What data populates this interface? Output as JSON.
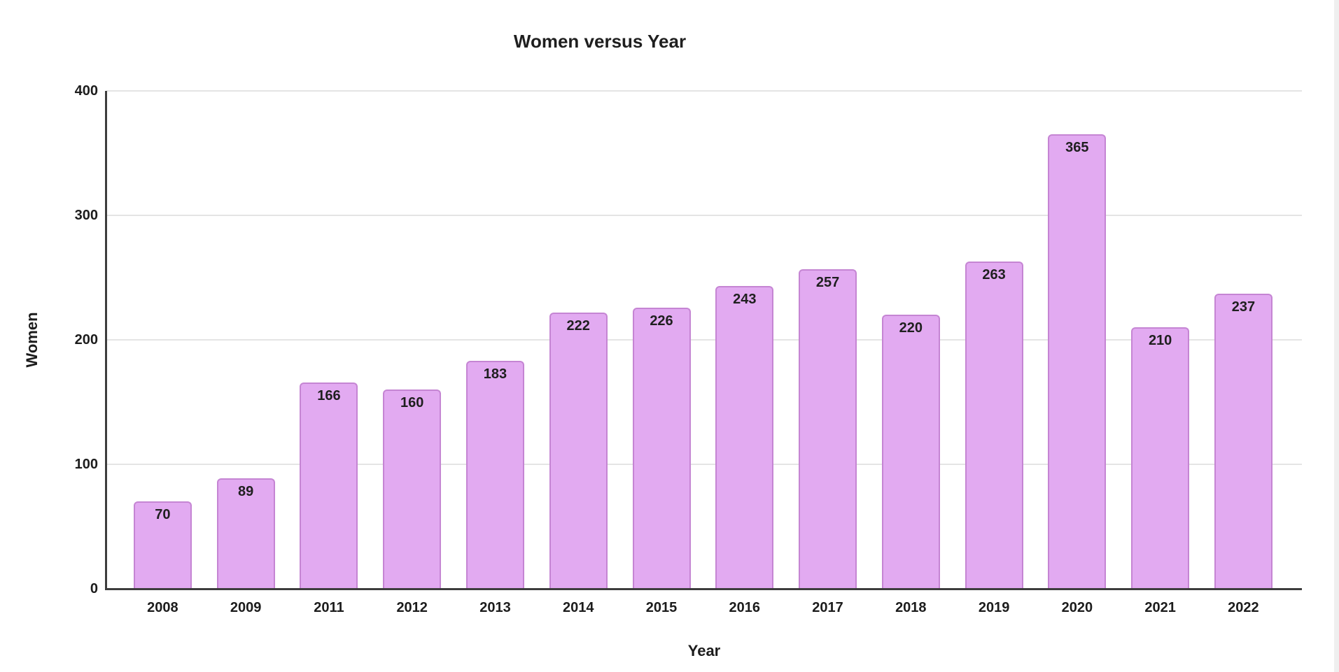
{
  "page": {
    "background_color": "#ffffff"
  },
  "chart_data": {
    "type": "bar",
    "title": "Women versus Year",
    "xlabel": "Year",
    "ylabel": "Women",
    "categories": [
      "2008",
      "2009",
      "2011",
      "2012",
      "2013",
      "2014",
      "2015",
      "2016",
      "2017",
      "2018",
      "2019",
      "2020",
      "2021",
      "2022"
    ],
    "values": [
      70,
      89,
      166,
      160,
      183,
      222,
      226,
      243,
      257,
      220,
      263,
      365,
      210,
      237
    ],
    "ylim": [
      0,
      400
    ],
    "yticks": [
      0,
      100,
      200,
      300,
      400
    ],
    "grid": true,
    "legend": "none",
    "value_labels": true,
    "colors": {
      "bar_fill": "#e2aaf1",
      "bar_border": "#c585d3",
      "gridline": "#e4e4e4",
      "axis_line": "#3d3d3d",
      "text": "#1c1c1c"
    }
  }
}
